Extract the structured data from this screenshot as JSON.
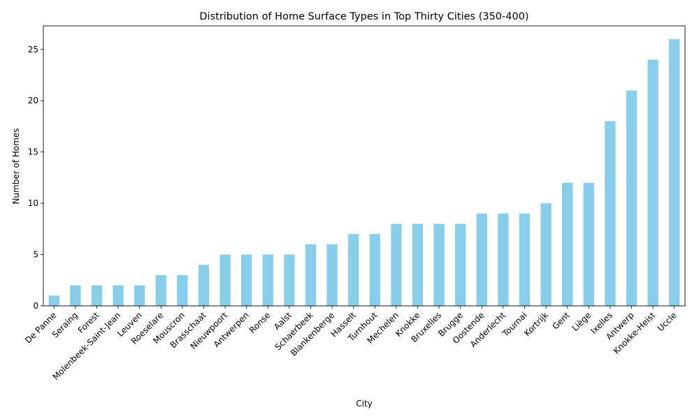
{
  "chart_data": {
    "type": "bar",
    "title": "Distribution of Home Surface Types in Top Thirty Cities (350-400)",
    "xlabel": "City",
    "ylabel": "Number of Homes",
    "ylim": [
      0,
      27.3
    ],
    "yticks": [
      0,
      5,
      10,
      15,
      20,
      25
    ],
    "grid": false,
    "legend": "none",
    "bar_color": "#87ceeb",
    "categories": [
      "De Panne",
      "Seraing",
      "Forest",
      "Molenbeek-Saint-Jean",
      "Leuven",
      "Roeselare",
      "Mouscron",
      "Brasschaat",
      "Nieuwpoort",
      "Antwerpen",
      "Ronse",
      "Aalst",
      "Schaerbeek",
      "Blankenberge",
      "Hasselt",
      "Turnhout",
      "Mechelen",
      "Knokke",
      "Bruxelles",
      "Brugge",
      "Oostende",
      "Anderlecht",
      "Tournai",
      "Kortrijk",
      "Gent",
      "Liège",
      "Ixelles",
      "Antwerp",
      "Knokke-Heist",
      "Uccle"
    ],
    "values": [
      1,
      2,
      2,
      2,
      2,
      3,
      3,
      4,
      5,
      5,
      5,
      5,
      6,
      6,
      7,
      7,
      8,
      8,
      8,
      8,
      9,
      9,
      9,
      10,
      12,
      12,
      18,
      21,
      24,
      26
    ]
  }
}
